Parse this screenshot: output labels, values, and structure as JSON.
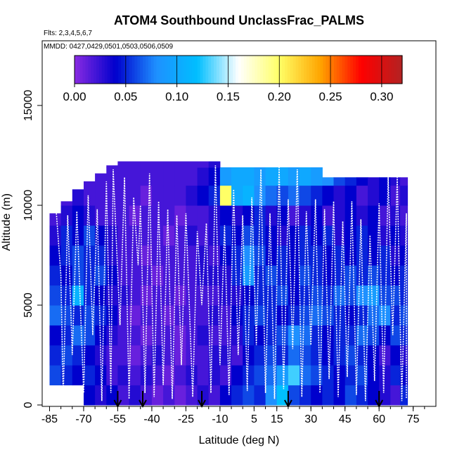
{
  "chart_data": {
    "type": "heatmap",
    "title": "ATOM4 Southbound UnclassFrac_PALMS",
    "flights_label": "Flts: 2,3,4,5,6,7",
    "dates_label": "MMDD: 0427,0429,0501,0503,0506,0509",
    "xlabel": "Latitude (deg N)",
    "ylabel": "Altitude (m)",
    "xlim": [
      -87,
      85
    ],
    "ylim": [
      0,
      17500
    ],
    "x_ticks": [
      "-85",
      "-70",
      "-55",
      "-40",
      "-25",
      "-10",
      "5",
      "15",
      "30",
      "45",
      "60",
      "75"
    ],
    "y_ticks": [
      "0",
      "5000",
      "10000",
      "15000"
    ],
    "colorbar": {
      "ticks": [
        "0.00",
        "0.05",
        "0.10",
        "0.15",
        "0.20",
        "0.25",
        "0.30"
      ],
      "range": [
        0,
        0.32
      ],
      "colors": [
        "#8a2be2",
        "#0000cd",
        "#1e90ff",
        "#00bfff",
        "#ffffff",
        "#ffff66",
        "#ffa500",
        "#ff0000",
        "#b22222"
      ]
    },
    "flight_track_color": "#ffffff",
    "arrow_latitudes": [
      -55,
      -44,
      -18,
      20,
      60
    ],
    "lat_bins": [
      -82.5,
      -77.5,
      -72.5,
      -67.5,
      -62.5,
      -57.5,
      -52.5,
      -47.5,
      -42.5,
      -37.5,
      -32.5,
      -27.5,
      -22.5,
      -17.5,
      -12.5,
      -7.5,
      -2.5,
      2.5,
      7.5,
      12.5,
      17.5,
      22.5,
      27.5,
      32.5,
      37.5,
      42.5,
      47.5,
      52.5,
      57.5,
      62.5,
      67.5,
      71.0
    ],
    "alt_bins": [
      500,
      1500,
      2500,
      3500,
      4500,
      5500,
      6500,
      7500,
      8500,
      9500,
      10500,
      11500,
      12300
    ],
    "values": [
      [
        0.03,
        0.04,
        0.05,
        0.04,
        0.03,
        0.04,
        0.02,
        0.03,
        0.02,
        0.01,
        0.02,
        0.01,
        0.02,
        0.03,
        0.02,
        0.04,
        0.05,
        0.06,
        0.05,
        0.08,
        0.12,
        0.06,
        0.05,
        0.04,
        0.05,
        0.04,
        0.06,
        0.05,
        0.04,
        0.03,
        0.02,
        0.05
      ],
      [
        0.06,
        0.05,
        0.04,
        0.05,
        0.04,
        0.02,
        0.03,
        0.02,
        0.03,
        0.02,
        0.01,
        0.02,
        0.03,
        0.02,
        0.03,
        0.02,
        0.04,
        0.05,
        0.06,
        0.07,
        0.09,
        0.13,
        0.07,
        0.06,
        0.05,
        0.04,
        0.05,
        0.06,
        0.04,
        0.03,
        0.05,
        0.04
      ],
      [
        0.05,
        0.06,
        0.05,
        0.04,
        0.03,
        0.02,
        0.02,
        0.01,
        0.02,
        0.03,
        0.02,
        0.01,
        0.02,
        0.02,
        0.03,
        0.03,
        0.02,
        0.04,
        0.05,
        0.06,
        0.05,
        0.07,
        0.06,
        0.05,
        0.04,
        0.05,
        0.06,
        0.05,
        0.04,
        0.02,
        0.04,
        0.03
      ],
      [
        0.04,
        0.05,
        0.07,
        0.06,
        0.04,
        0.03,
        0.02,
        0.02,
        0.01,
        0.02,
        0.02,
        0.01,
        0.02,
        0.03,
        0.02,
        0.02,
        0.03,
        0.05,
        0.04,
        0.05,
        0.06,
        0.08,
        0.07,
        0.05,
        0.04,
        0.05,
        0.05,
        0.07,
        0.06,
        0.04,
        0.06,
        0.05
      ],
      [
        0.07,
        0.06,
        0.05,
        0.06,
        0.05,
        0.04,
        0.02,
        0.01,
        0.02,
        0.02,
        0.01,
        0.02,
        0.02,
        0.02,
        0.03,
        0.02,
        0.04,
        0.05,
        0.06,
        0.05,
        0.04,
        0.05,
        0.06,
        0.07,
        0.06,
        0.05,
        0.04,
        0.05,
        0.07,
        0.08,
        0.05,
        0.06
      ],
      [
        0.06,
        0.05,
        0.11,
        0.05,
        0.04,
        0.03,
        0.03,
        0.02,
        0.01,
        0.02,
        0.02,
        0.01,
        0.02,
        0.02,
        0.02,
        0.03,
        0.03,
        0.04,
        0.05,
        0.05,
        0.06,
        0.04,
        0.05,
        0.06,
        0.05,
        0.07,
        0.06,
        0.08,
        0.09,
        0.06,
        0.06,
        0.05
      ],
      [
        0.05,
        0.04,
        0.06,
        0.05,
        0.06,
        0.04,
        0.02,
        0.02,
        0.02,
        0.01,
        0.02,
        0.02,
        0.02,
        0.03,
        0.03,
        0.03,
        0.05,
        0.09,
        0.05,
        0.06,
        0.05,
        0.04,
        0.06,
        0.05,
        0.04,
        0.05,
        0.06,
        0.05,
        0.06,
        0.05,
        0.04,
        0.05
      ],
      [
        0.04,
        0.05,
        0.06,
        0.05,
        0.05,
        0.03,
        0.02,
        0.02,
        0.01,
        0.02,
        0.02,
        0.02,
        0.02,
        0.03,
        0.02,
        0.04,
        0.05,
        0.08,
        0.06,
        0.04,
        0.05,
        0.04,
        0.05,
        0.05,
        0.04,
        0.05,
        0.04,
        0.05,
        0.04,
        0.05,
        0.03,
        0.04
      ],
      [
        0.03,
        0.05,
        0.04,
        0.06,
        0.04,
        0.03,
        0.02,
        0.02,
        0.02,
        0.02,
        0.01,
        0.02,
        0.03,
        0.02,
        0.03,
        0.05,
        0.04,
        0.06,
        0.05,
        0.04,
        0.03,
        0.04,
        0.05,
        0.04,
        0.05,
        0.03,
        0.04,
        0.05,
        0.04,
        0.03,
        0.04,
        0.03
      ],
      [
        0.02,
        0.03,
        0.04,
        0.03,
        0.02,
        0.02,
        0.02,
        0.01,
        0.02,
        0.02,
        0.02,
        0.01,
        0.02,
        0.02,
        0.03,
        0.04,
        0.03,
        0.04,
        0.05,
        0.03,
        0.04,
        0.02,
        0.03,
        0.04,
        0.02,
        0.03,
        0.04,
        0.03,
        0.04,
        0.02,
        0.03,
        0.02
      ],
      [
        0.02,
        0.02,
        0.03,
        0.02,
        0.02,
        0.02,
        0.02,
        0.02,
        0.01,
        0.02,
        0.02,
        0.02,
        0.03,
        0.04,
        0.05,
        0.2,
        0.1,
        0.11,
        0.08,
        0.07,
        0.06,
        0.07,
        0.06,
        0.05,
        0.04,
        0.03,
        0.04,
        0.02,
        0.03,
        0.04,
        0.02,
        0.03
      ],
      [
        0.02,
        0.02,
        0.02,
        0.02,
        0.02,
        0.02,
        0.02,
        0.02,
        0.02,
        0.02,
        0.02,
        0.02,
        0.02,
        0.03,
        0.04,
        0.09,
        0.1,
        0.1,
        0.09,
        0.1,
        0.1,
        0.09,
        0.1,
        0.09,
        0.08,
        0.06,
        0.05,
        0.04,
        0.03,
        0.04,
        0.03,
        0.02
      ],
      [
        0.02,
        0.02,
        0.02,
        0.02,
        0.02,
        0.02,
        0.02,
        0.02,
        0.02,
        0.02,
        0.02,
        0.02,
        0.02,
        0.02,
        0.03,
        0.03,
        0.02,
        0.02,
        0.02,
        0.02,
        0.02,
        0.02,
        0.02,
        0.02,
        0.02,
        0.02,
        0.02,
        0.02,
        0.02,
        0.02,
        0.02,
        0.02
      ]
    ],
    "top_envelope_alt": [
      9600,
      10200,
      10800,
      11200,
      11600,
      12000,
      12200,
      12200,
      12200,
      12200,
      12200,
      12200,
      12200,
      12200,
      12200,
      11900,
      11900,
      11900,
      11900,
      11900,
      11900,
      11900,
      11900,
      11900,
      11400,
      11400,
      11400,
      11400,
      11400,
      11400,
      11400,
      11400
    ],
    "flight_profiles": [
      [
        -82,
        9600
      ],
      [
        -80,
        6500
      ],
      [
        -79,
        400
      ],
      [
        -77,
        9500
      ],
      [
        -75,
        2500
      ],
      [
        -73,
        9700
      ],
      [
        -70,
        600
      ],
      [
        -68,
        10500
      ],
      [
        -66,
        3500
      ],
      [
        -64,
        9800
      ],
      [
        -62,
        200
      ],
      [
        -60,
        11200
      ],
      [
        -58,
        600
      ],
      [
        -57,
        11800
      ],
      [
        -54,
        4000
      ],
      [
        -52,
        11400
      ],
      [
        -50,
        300
      ],
      [
        -48,
        10400
      ],
      [
        -46,
        7000
      ],
      [
        -45,
        10000
      ],
      [
        -43,
        600
      ],
      [
        -41,
        11600
      ],
      [
        -39,
        400
      ],
      [
        -37,
        10200
      ],
      [
        -35,
        1000
      ],
      [
        -33,
        9800
      ],
      [
        -31,
        300
      ],
      [
        -29,
        9500
      ],
      [
        -27,
        2000
      ],
      [
        -25,
        9600
      ],
      [
        -22,
        400
      ],
      [
        -20,
        8700
      ],
      [
        -18,
        5000
      ],
      [
        -16,
        9100
      ],
      [
        -14,
        600
      ],
      [
        -12,
        12000
      ],
      [
        -10,
        2000
      ],
      [
        -8,
        9000
      ],
      [
        -6,
        500
      ],
      [
        -4,
        10800
      ],
      [
        -2,
        2500
      ],
      [
        0,
        9500
      ],
      [
        2,
        700
      ],
      [
        4,
        10400
      ],
      [
        6,
        3000
      ],
      [
        8,
        11800
      ],
      [
        10,
        600
      ],
      [
        12,
        9600
      ],
      [
        14,
        300
      ],
      [
        16,
        11900
      ],
      [
        18,
        800
      ],
      [
        20,
        10300
      ],
      [
        22,
        2800
      ],
      [
        24,
        11800
      ],
      [
        26,
        400
      ],
      [
        28,
        9700
      ],
      [
        30,
        3000
      ],
      [
        32,
        10300
      ],
      [
        34,
        600
      ],
      [
        36,
        9800
      ],
      [
        38,
        1300
      ],
      [
        40,
        10200
      ],
      [
        42,
        400
      ],
      [
        44,
        9200
      ],
      [
        46,
        1400
      ],
      [
        48,
        10200
      ],
      [
        50,
        500
      ],
      [
        52,
        9300
      ],
      [
        54,
        200
      ],
      [
        56,
        8500
      ],
      [
        58,
        1200
      ],
      [
        60,
        10100
      ],
      [
        62,
        600
      ],
      [
        64,
        11400
      ],
      [
        66,
        3500
      ],
      [
        68,
        11400
      ],
      [
        70,
        200
      ],
      [
        72,
        9600
      ],
      [
        72,
        300
      ]
    ]
  }
}
